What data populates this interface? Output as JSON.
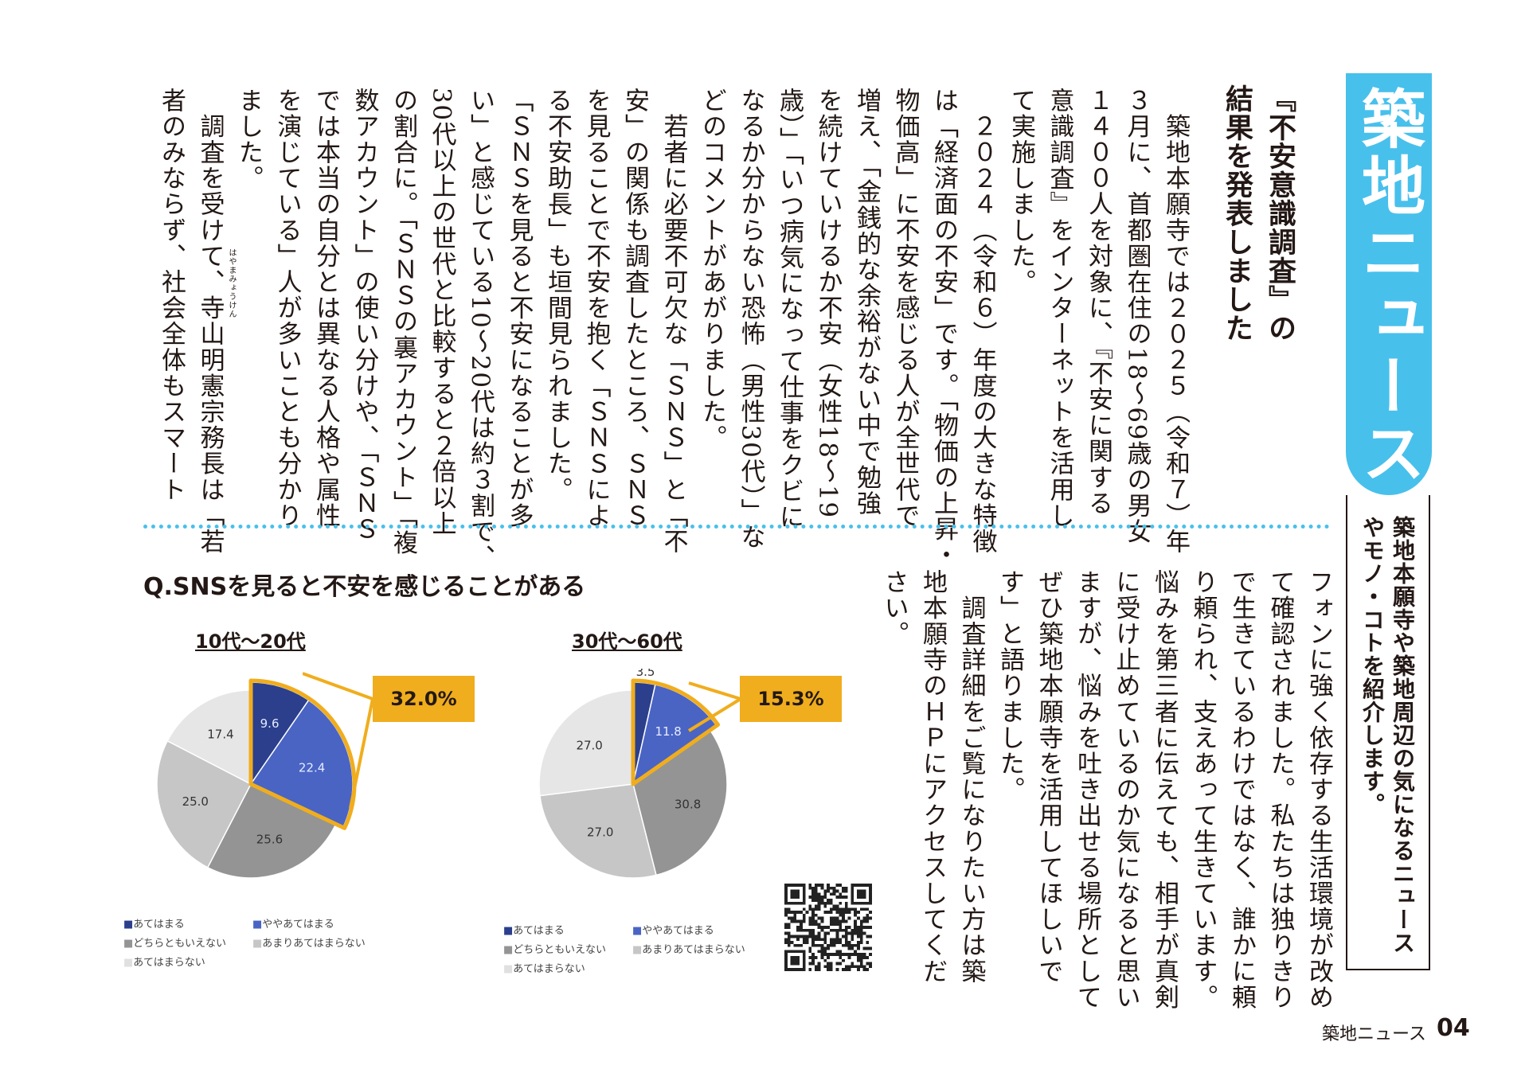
{
  "banner": {
    "title": "築地ニュース",
    "subtitle": "築地本願寺や築地周辺の気になるニュースやモノ・コトを紹介します。"
  },
  "article": {
    "headline": "『不安意識調査』の\n結果を発表しました",
    "body_upper": "　築地本願寺では２０２５（令和７）年\n３月に、首都圏在住の18～69歳の男女\n１４００人を対象に、『不安に関する\n意識調査』をインターネットを活用し\nて実施しました。\n　２０２４（令和６）年度の大きな特徴\nは「経済面の不安」です。「物価の上昇・\n物価高」に不安を感じる人が全世代で\n増え、「金銭的な余裕がない中で勉強\nを続けていけるか不安（女性18～19\n歳）」「いつ病気になって仕事をクビに\nなるか分からない恐怖（男性30代）」な\nどのコメントがあがりました。\n　若者に必要不可欠な「ＳＮＳ」と「不\n安」の関係も調査したところ、ＳＮＳ\nを見ることで不安を抱く「ＳＮＳによ\nる不安助長」も垣間見られました。\n「ＳＮＳを見ると不安になることが多\nい」と感じている10～20代は約３割で、\n30代以上の世代と比較すると２倍以上\nの割合に。「ＳＮＳの裏アカウント」「複\n数アカウント」の使い分けや、「ＳＮＳ\nでは本当の自分とは異なる人格や属性\nを演じている」人が多いことも分かり\nました。\n　調査を受けて、寺山明憲宗務長は「若\n者のみならず、社会全体もスマート",
    "body_lower": "フォンに強く依存する生活環境が改め\nて確認されました。私たちは独りきり\nで生きているわけではなく、誰かに頼\nり頼られ、支えあって生きています。\n悩みを第三者に伝えても、相手が真剣\nに受け止めているのか気になると思い\nますが、悩みを吐き出せる場所として\nぜひ築地本願寺を活用してほしいで\nす」と語りました。\n　調査詳細をご覧になりたい方は築\n地本願寺のＨＰにアクセスしてくだ\nさい。",
    "ruby": "はやまみょうけん"
  },
  "chart_section": {
    "question": "Q.SNSを見ると不安を感じることがある",
    "legend": [
      "あてはまる",
      "ややあてはまる",
      "どちらともいえない",
      "あまりあてはまらない",
      "あてはまらない"
    ]
  },
  "chart_data": [
    {
      "type": "pie",
      "title": "10代～20代",
      "categories": [
        "あてはまる",
        "ややあてはまる",
        "どちらともいえない",
        "あまりあてはまらない",
        "あてはまらない"
      ],
      "values": [
        9.6,
        22.4,
        25.6,
        25.0,
        17.4
      ],
      "highlight_total": "32.0%",
      "colors": [
        "#2b3f8c",
        "#4a64c4",
        "#949494",
        "#c6c6c6",
        "#e6e6e6"
      ]
    },
    {
      "type": "pie",
      "title": "30代～60代",
      "categories": [
        "あてはまる",
        "ややあてはまる",
        "どちらともいえない",
        "あまりあてはまらない",
        "あてはまらない"
      ],
      "values": [
        3.5,
        11.8,
        30.8,
        27.0,
        27.0
      ],
      "highlight_total": "15.3%",
      "colors": [
        "#2b3f8c",
        "#4a64c4",
        "#949494",
        "#c6c6c6",
        "#e6e6e6"
      ]
    }
  ],
  "footer": {
    "label": "築地ニュース",
    "page": "04"
  }
}
